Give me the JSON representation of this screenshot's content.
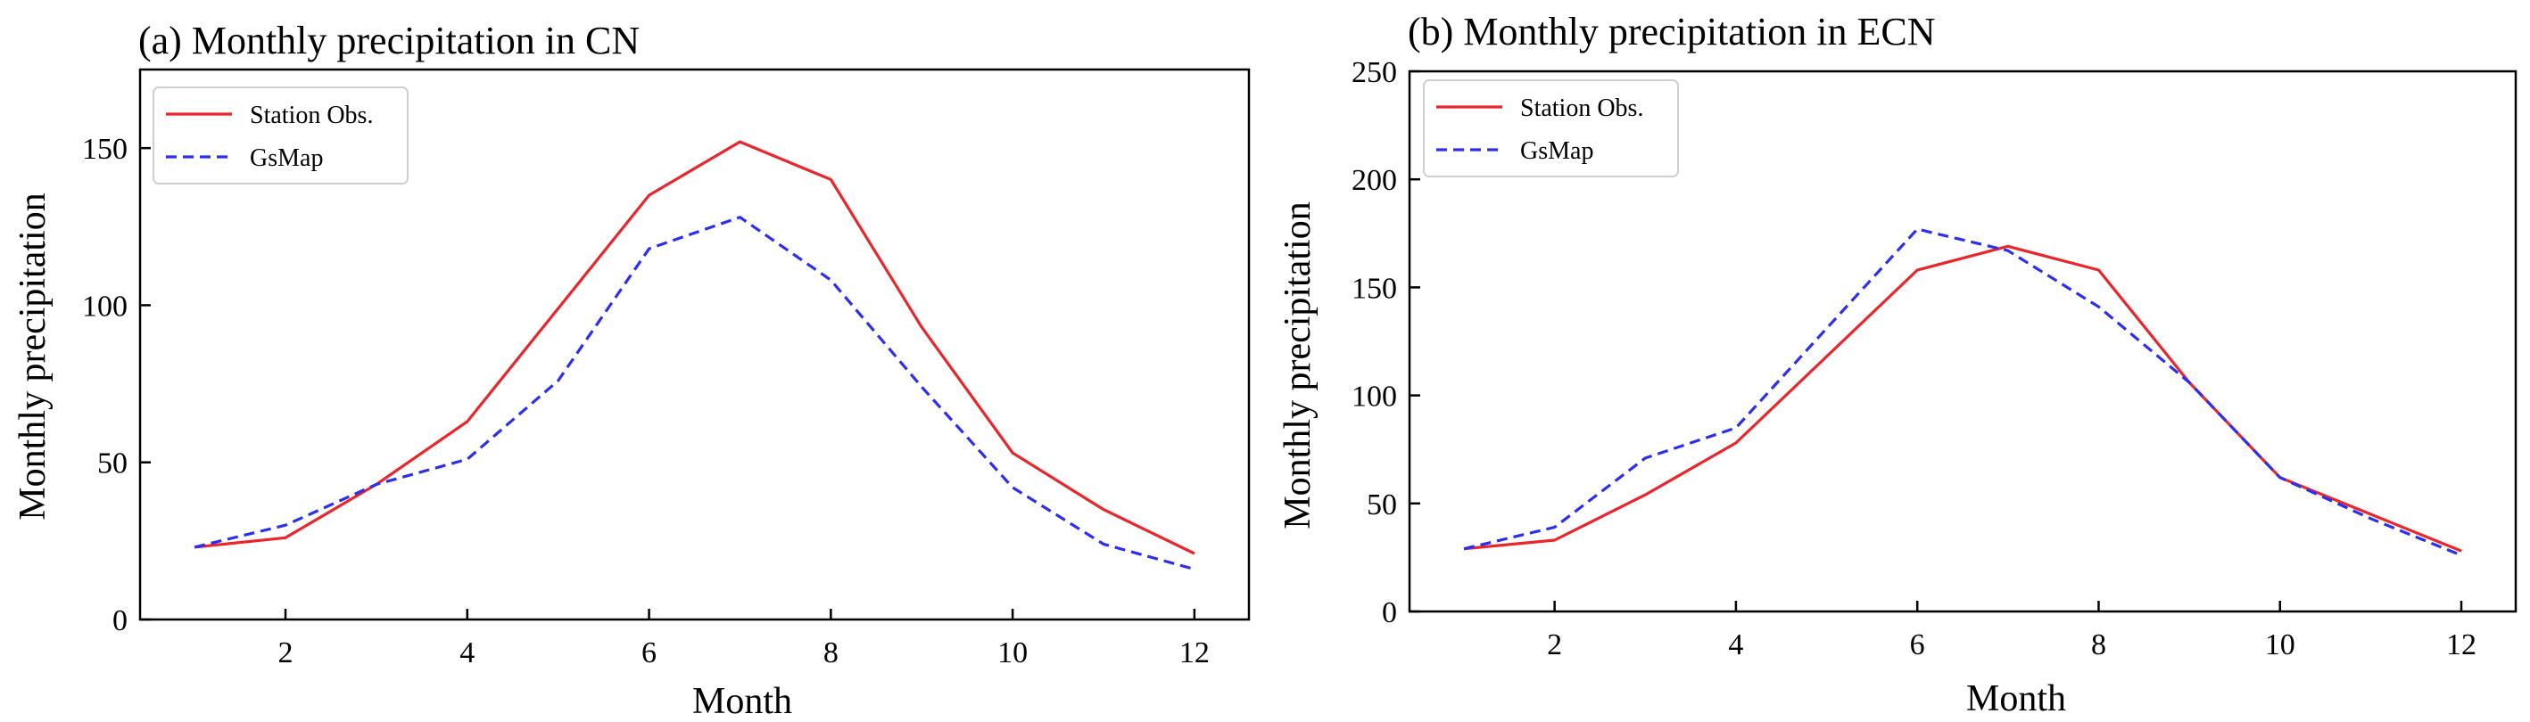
{
  "chart_data": [
    {
      "type": "line",
      "title": "(a) Monthly precipitation in CN",
      "xlabel": "Month",
      "ylabel": "Monthly precipitation",
      "xlim": [
        0.4,
        12.6
      ],
      "ylim": [
        0,
        175
      ],
      "xticks": [
        2,
        4,
        6,
        8,
        10,
        12
      ],
      "yticks": [
        0,
        50,
        100,
        150
      ],
      "legend_position": "top-left",
      "x": [
        1,
        2,
        3,
        4,
        5,
        6,
        7,
        8,
        9,
        10,
        11,
        12
      ],
      "series": [
        {
          "name": "Station Obs.",
          "color": "#e8262b",
          "dash": "solid",
          "values": [
            23,
            26,
            43,
            63,
            99,
            135,
            152,
            140,
            93,
            53,
            35,
            21
          ]
        },
        {
          "name": "GsMap",
          "color": "#2d2ff0",
          "dash": "dashed",
          "values": [
            23,
            30,
            43,
            51,
            76,
            118,
            128,
            108,
            74,
            42,
            24,
            16
          ]
        }
      ]
    },
    {
      "type": "line",
      "title": "(b) Monthly precipitation in ECN",
      "xlabel": "Month",
      "ylabel": "Monthly precipitation",
      "xlim": [
        0.4,
        12.6
      ],
      "ylim": [
        0,
        250
      ],
      "xticks": [
        2,
        4,
        6,
        8,
        10,
        12
      ],
      "yticks": [
        0,
        50,
        100,
        150,
        200,
        250
      ],
      "legend_position": "top-left",
      "x": [
        1,
        2,
        3,
        4,
        5,
        6,
        7,
        8,
        9,
        10,
        11,
        12
      ],
      "series": [
        {
          "name": "Station Obs.",
          "color": "#e8262b",
          "dash": "solid",
          "values": [
            29,
            33,
            54,
            78,
            118,
            158,
            169,
            158,
            106,
            62,
            45,
            28
          ]
        },
        {
          "name": "GsMap",
          "color": "#2d2ff0",
          "dash": "dashed",
          "values": [
            29,
            39,
            71,
            85,
            131,
            177,
            167,
            141,
            106,
            62,
            43,
            26
          ]
        }
      ]
    }
  ]
}
